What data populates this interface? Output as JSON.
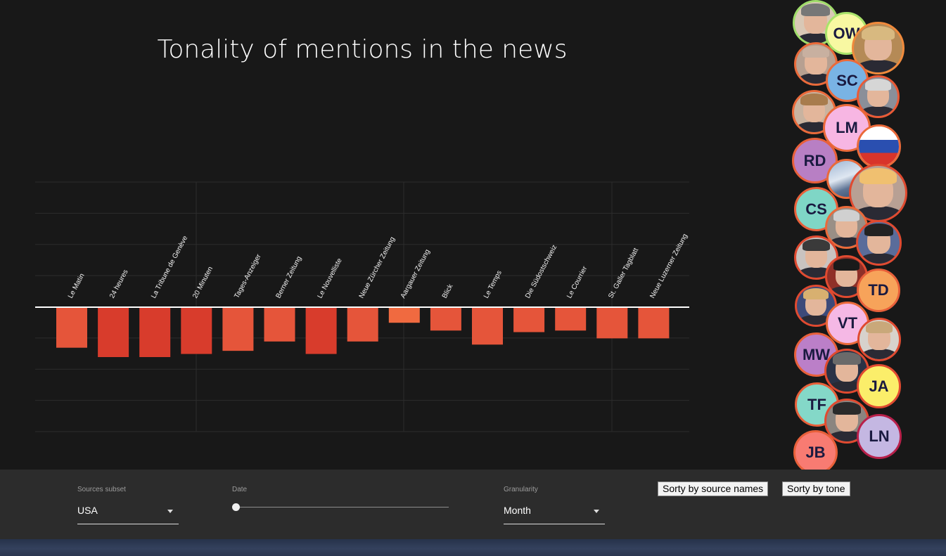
{
  "chart_data": {
    "type": "bar",
    "title": "Tonality of mentions in the news",
    "categories": [
      "Le Matin",
      "24 heures",
      "La Tribune de Genève",
      "20 Minuten",
      "Tages-Anzeiger",
      "Berner Zeitung",
      "Le Nouvelliste",
      "Neue Zürcher Zeitung",
      "Aargauer Zeitung",
      "Blick",
      "Le Temps",
      "Die Südostschweiz",
      "Le Courrier",
      "St. Galler Tagblatt",
      "Neue Luzerner Zeitung"
    ],
    "values": [
      -0.13,
      -0.16,
      -0.16,
      -0.15,
      -0.14,
      -0.11,
      -0.15,
      -0.11,
      -0.05,
      -0.075,
      -0.12,
      -0.08,
      -0.075,
      -0.1,
      -0.1
    ],
    "ylim": [
      -0.4,
      0.4
    ],
    "xlabel": "",
    "ylabel": "",
    "grid": true,
    "colors": {
      "strong": "#d83c2c",
      "medium": "#e5553a",
      "light": "#f06a40",
      "zero_line": "#ffffff",
      "grid": "#2c2c2c"
    }
  },
  "people": [
    {
      "initials": "",
      "icon": "portrait-icon",
      "border": "#9fdc6a",
      "bg": "#d9c8b6",
      "hair": "#777777"
    },
    {
      "initials": "OW",
      "icon": "",
      "border": "#a9e36a",
      "bg": "#f8f8a2",
      "hair": ""
    },
    {
      "initials": "",
      "icon": "portrait-icon",
      "border": "#f08a3c",
      "bg": "#b58a56",
      "hair": "#d8b980"
    },
    {
      "initials": "",
      "icon": "portrait-icon",
      "border": "#ea6a3a",
      "bg": "#b7a091",
      "hair": "#c8b0a0"
    },
    {
      "initials": "SC",
      "icon": "",
      "border": "#ea6a3a",
      "bg": "#79b3e4",
      "hair": ""
    },
    {
      "initials": "",
      "icon": "portrait-icon",
      "border": "#ea5a36",
      "bg": "#8a8f99",
      "hair": "#d6d6d6"
    },
    {
      "initials": "",
      "icon": "portrait-icon",
      "border": "#ea6a3a",
      "bg": "#c9b3a0",
      "hair": "#a87c4d"
    },
    {
      "initials": "LM",
      "icon": "",
      "border": "#ea6a3a",
      "bg": "#f7b6e3",
      "hair": ""
    },
    {
      "initials": "",
      "icon": "flag-icon",
      "border": "#ea6a3a",
      "bg": "#ffffff",
      "hair": ""
    },
    {
      "initials": "RD",
      "icon": "",
      "border": "#e8603a",
      "bg": "#b87fc4",
      "hair": ""
    },
    {
      "initials": "",
      "icon": "mountain-icon",
      "border": "#ea6a3a",
      "bg": "#6f8aae",
      "hair": ""
    },
    {
      "initials": "",
      "icon": "portrait-icon",
      "border": "#e04a30",
      "bg": "#b8a094",
      "hair": "#f0c070"
    },
    {
      "initials": "CS",
      "icon": "",
      "border": "#e8603a",
      "bg": "#7fd6c6",
      "hair": ""
    },
    {
      "initials": "",
      "icon": "portrait-icon",
      "border": "#ea6a3a",
      "bg": "#9a8f86",
      "hair": "#d0d0d0"
    },
    {
      "initials": "",
      "icon": "portrait-icon",
      "border": "#e04a30",
      "bg": "#5a6c9a",
      "hair": "#222222"
    },
    {
      "initials": "",
      "icon": "portrait-icon",
      "border": "#e04a30",
      "bg": "#c9c3c0",
      "hair": "#3a3a3a"
    },
    {
      "initials": "",
      "icon": "portrait-icon",
      "border": "#e04a30",
      "bg": "#8f3028",
      "hair": "#1a1a1a"
    },
    {
      "initials": "TD",
      "icon": "",
      "border": "#e8603a",
      "bg": "#f7a35a",
      "hair": ""
    },
    {
      "initials": "",
      "icon": "portrait-icon",
      "border": "#e04a30",
      "bg": "#3d4a7a",
      "hair": "#d8b070"
    },
    {
      "initials": "VT",
      "icon": "",
      "border": "#ea6a3a",
      "bg": "#f5b8e5",
      "hair": ""
    },
    {
      "initials": "",
      "icon": "portrait-icon",
      "border": "#e04a30",
      "bg": "#d7d2cc",
      "hair": "#c9a87a"
    },
    {
      "initials": "MW",
      "icon": "",
      "border": "#e8603a",
      "bg": "#bb7fc8",
      "hair": ""
    },
    {
      "initials": "",
      "icon": "portrait-icon",
      "border": "#e04a30",
      "bg": "#2a3246",
      "hair": "#6a6a6a"
    },
    {
      "initials": "JA",
      "icon": "",
      "border": "#e04a30",
      "bg": "#fbee6a",
      "hair": ""
    },
    {
      "initials": "TF",
      "icon": "",
      "border": "#e8603a",
      "bg": "#84d8c8",
      "hair": ""
    },
    {
      "initials": "",
      "icon": "portrait-icon",
      "border": "#e04a30",
      "bg": "#8b8580",
      "hair": "#2a2a2a"
    },
    {
      "initials": "LN",
      "icon": "",
      "border": "#b8204a",
      "bg": "#c4b7e2",
      "hair": ""
    },
    {
      "initials": "JB",
      "icon": "",
      "border": "#e8603a",
      "bg": "#f87b72",
      "hair": ""
    }
  ],
  "controls": {
    "sources": {
      "label": "Sources subset",
      "value": "USA"
    },
    "date": {
      "label": "Date",
      "position": 0.0
    },
    "granularity": {
      "label": "Granularity",
      "value": "Month"
    },
    "sort_names": "Sorty by source names",
    "sort_tone": "Sorty by tone"
  }
}
